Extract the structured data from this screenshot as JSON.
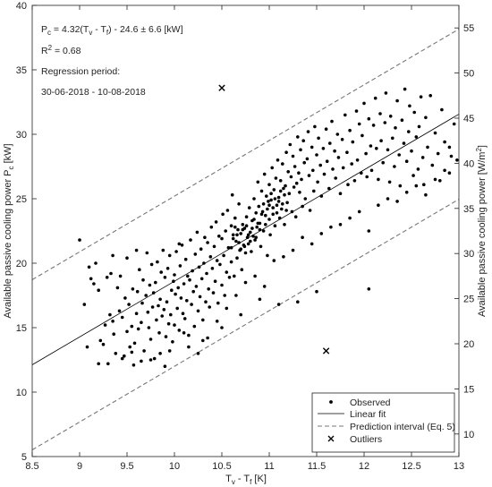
{
  "chart_data": {
    "type": "scatter",
    "x_axis": {
      "label_main": "T",
      "label_sub1": "v",
      "label_mid": " - T",
      "label_sub2": "f",
      "label_unit": " [K]",
      "range": [
        8.5,
        13
      ],
      "ticks": [
        "8.5",
        "9",
        "9.5",
        "10",
        "10.5",
        "11",
        "11.5",
        "12",
        "12.5",
        "13"
      ]
    },
    "y_left": {
      "label_main": "Available passive cooling power P",
      "label_sub": "c",
      "label_unit": " [kW]",
      "range": [
        5,
        40
      ],
      "ticks": [
        "5",
        "10",
        "15",
        "20",
        "25",
        "30",
        "35",
        "40"
      ]
    },
    "y_right": {
      "label_main": "Available passive cooling power [W/m",
      "label_sup": "2",
      "label_end": "]",
      "range": [
        7.5,
        57.5
      ],
      "ticks": [
        "10",
        "15",
        "20",
        "25",
        "30",
        "35",
        "40",
        "45",
        "50",
        "55"
      ]
    },
    "annotations": {
      "eq_p": "P",
      "eq_c": "c",
      "eq_mid": " = 4.32(T",
      "eq_v": "v",
      "eq_dash": " - T",
      "eq_f": "f",
      "eq_end": ") - 24.6 ± 6.6 [kW]",
      "r2_main": "R",
      "r2_sup": "2",
      "r2_end": " = 0.68",
      "period_label": "Regression period:",
      "period_value": "30-06-2018 - 10-08-2018"
    },
    "linear_fit": {
      "slope": 4.32,
      "intercept": -24.6
    },
    "prediction_interval": {
      "half_width": 6.6
    },
    "outliers": [
      {
        "x": 10.5,
        "y": 33.6
      },
      {
        "x": 11.6,
        "y": 13.2
      }
    ],
    "legend": {
      "placement": "bottom-right",
      "entries": [
        "Observed",
        "Linear fit",
        "Prediction interval (Eq. 5)",
        "Outliers"
      ]
    },
    "observed": [
      [
        9.0,
        21.8
      ],
      [
        9.05,
        16.8
      ],
      [
        9.08,
        13.5
      ],
      [
        9.1,
        19.7
      ],
      [
        9.12,
        18.8
      ],
      [
        9.15,
        18.4
      ],
      [
        9.17,
        20.0
      ],
      [
        9.2,
        17.9
      ],
      [
        9.22,
        14.0
      ],
      [
        9.25,
        13.7
      ],
      [
        9.27,
        15.2
      ],
      [
        9.29,
        18.9
      ],
      [
        9.3,
        12.2
      ],
      [
        9.32,
        16.0
      ],
      [
        9.33,
        19.2
      ],
      [
        9.35,
        15.5
      ],
      [
        9.36,
        14.5
      ],
      [
        9.38,
        13.0
      ],
      [
        9.4,
        18.1
      ],
      [
        9.42,
        16.3
      ],
      [
        9.43,
        19.0
      ],
      [
        9.45,
        15.8
      ],
      [
        9.47,
        12.8
      ],
      [
        9.48,
        17.3
      ],
      [
        9.5,
        20.4
      ],
      [
        9.5,
        14.7
      ],
      [
        9.52,
        16.8
      ],
      [
        9.53,
        13.5
      ],
      [
        9.55,
        15.1
      ],
      [
        9.56,
        18.0
      ],
      [
        9.57,
        12.1
      ],
      [
        9.58,
        13.8
      ],
      [
        9.6,
        16.1
      ],
      [
        9.61,
        17.8
      ],
      [
        9.62,
        14.9
      ],
      [
        9.63,
        19.5
      ],
      [
        9.65,
        15.4
      ],
      [
        9.66,
        16.9
      ],
      [
        9.67,
        18.7
      ],
      [
        9.68,
        13.2
      ],
      [
        9.7,
        17.5
      ],
      [
        9.71,
        20.8
      ],
      [
        9.72,
        16.2
      ],
      [
        9.73,
        15.0
      ],
      [
        9.74,
        18.3
      ],
      [
        9.75,
        14.1
      ],
      [
        9.76,
        19.9
      ],
      [
        9.77,
        16.6
      ],
      [
        9.78,
        17.7
      ],
      [
        9.79,
        12.6
      ],
      [
        9.8,
        18.5
      ],
      [
        9.81,
        15.6
      ],
      [
        9.82,
        20.1
      ],
      [
        9.83,
        16.7
      ],
      [
        9.84,
        14.6
      ],
      [
        9.85,
        17.2
      ],
      [
        9.86,
        19.3
      ],
      [
        9.87,
        15.9
      ],
      [
        9.88,
        21.0
      ],
      [
        9.89,
        16.4
      ],
      [
        9.9,
        18.9
      ],
      [
        9.91,
        14.3
      ],
      [
        9.92,
        17.0
      ],
      [
        9.93,
        19.6
      ],
      [
        9.94,
        15.3
      ],
      [
        9.95,
        20.6
      ],
      [
        9.96,
        16.0
      ],
      [
        9.97,
        17.9
      ],
      [
        9.98,
        13.9
      ],
      [
        9.99,
        18.6
      ],
      [
        10.0,
        19.1
      ],
      [
        10.0,
        15.2
      ],
      [
        10.01,
        17.6
      ],
      [
        10.02,
        20.9
      ],
      [
        10.03,
        16.5
      ],
      [
        10.04,
        18.1
      ],
      [
        10.05,
        14.8
      ],
      [
        10.06,
        19.8
      ],
      [
        10.07,
        17.3
      ],
      [
        10.08,
        21.4
      ],
      [
        10.09,
        16.1
      ],
      [
        10.1,
        18.4
      ],
      [
        10.11,
        15.7
      ],
      [
        10.12,
        20.3
      ],
      [
        10.13,
        17.1
      ],
      [
        10.14,
        19.0
      ],
      [
        10.15,
        14.4
      ],
      [
        10.16,
        18.7
      ],
      [
        10.17,
        21.8
      ],
      [
        10.18,
        16.8
      ],
      [
        10.19,
        19.4
      ],
      [
        10.2,
        17.8
      ],
      [
        10.21,
        15.1
      ],
      [
        10.22,
        20.7
      ],
      [
        10.23,
        18.2
      ],
      [
        10.24,
        22.4
      ],
      [
        10.25,
        16.3
      ],
      [
        10.26,
        19.7
      ],
      [
        10.27,
        17.4
      ],
      [
        10.28,
        21.1
      ],
      [
        10.29,
        18.8
      ],
      [
        10.3,
        15.6
      ],
      [
        10.31,
        20.0
      ],
      [
        10.32,
        22.0
      ],
      [
        10.33,
        17.0
      ],
      [
        10.34,
        19.2
      ],
      [
        10.35,
        21.6
      ],
      [
        10.36,
        18.0
      ],
      [
        10.37,
        16.6
      ],
      [
        10.38,
        20.5
      ],
      [
        10.39,
        22.8
      ],
      [
        10.4,
        19.6
      ],
      [
        10.41,
        17.7
      ],
      [
        10.42,
        21.3
      ],
      [
        10.43,
        18.6
      ],
      [
        10.44,
        23.2
      ],
      [
        10.45,
        20.2
      ],
      [
        10.46,
        16.9
      ],
      [
        10.47,
        22.1
      ],
      [
        10.48,
        19.9
      ],
      [
        10.5,
        18.3
      ],
      [
        10.5,
        21.9
      ],
      [
        10.51,
        23.8
      ],
      [
        10.52,
        20.6
      ],
      [
        10.53,
        17.5
      ],
      [
        10.54,
        22.5
      ],
      [
        10.55,
        19.3
      ],
      [
        10.56,
        24.1
      ],
      [
        10.57,
        21.2
      ],
      [
        10.58,
        18.9
      ],
      [
        10.6,
        22.9
      ],
      [
        10.6,
        20.1
      ],
      [
        10.61,
        25.3
      ],
      [
        10.62,
        22.2
      ],
      [
        10.63,
        19.0
      ],
      [
        10.64,
        23.5
      ],
      [
        10.65,
        21.7
      ],
      [
        10.66,
        20.4
      ],
      [
        10.67,
        22.6
      ],
      [
        10.68,
        24.6
      ],
      [
        10.69,
        21.0
      ],
      [
        10.7,
        22.3
      ],
      [
        10.71,
        19.5
      ],
      [
        10.72,
        23.0
      ],
      [
        10.73,
        21.4
      ],
      [
        10.74,
        22.7
      ],
      [
        10.75,
        20.8
      ],
      [
        10.76,
        23.6
      ],
      [
        10.77,
        22.0
      ],
      [
        10.78,
        21.5
      ],
      [
        10.79,
        24.3
      ],
      [
        10.8,
        22.4
      ],
      [
        10.81,
        20.9
      ],
      [
        10.82,
        23.3
      ],
      [
        10.83,
        22.1
      ],
      [
        10.84,
        25.0
      ],
      [
        10.85,
        21.8
      ],
      [
        10.86,
        23.9
      ],
      [
        10.87,
        22.8
      ],
      [
        10.88,
        26.3
      ],
      [
        10.89,
        24.4
      ],
      [
        10.9,
        23.1
      ],
      [
        10.91,
        21.3
      ],
      [
        10.92,
        25.6
      ],
      [
        10.93,
        24.0
      ],
      [
        10.94,
        22.5
      ],
      [
        10.95,
        26.9
      ],
      [
        10.96,
        23.7
      ],
      [
        10.97,
        25.2
      ],
      [
        10.98,
        20.6
      ],
      [
        10.99,
        24.8
      ],
      [
        11.0,
        23.4
      ],
      [
        11.0,
        26.1
      ],
      [
        11.01,
        22.2
      ],
      [
        11.02,
        24.9
      ],
      [
        11.03,
        27.4
      ],
      [
        11.04,
        23.8
      ],
      [
        11.05,
        25.7
      ],
      [
        11.06,
        22.9
      ],
      [
        11.07,
        26.6
      ],
      [
        11.08,
        24.5
      ],
      [
        11.09,
        28.0
      ],
      [
        11.1,
        25.1
      ],
      [
        11.11,
        23.5
      ],
      [
        11.12,
        26.4
      ],
      [
        11.13,
        24.2
      ],
      [
        11.14,
        27.7
      ],
      [
        11.15,
        25.8
      ],
      [
        11.16,
        23.0
      ],
      [
        11.17,
        26.0
      ],
      [
        11.18,
        28.6
      ],
      [
        11.19,
        24.7
      ],
      [
        11.2,
        27.1
      ],
      [
        11.21,
        25.4
      ],
      [
        11.22,
        29.2
      ],
      [
        11.23,
        26.7
      ],
      [
        11.24,
        24.0
      ],
      [
        11.25,
        28.3
      ],
      [
        11.26,
        25.9
      ],
      [
        11.27,
        27.5
      ],
      [
        11.28,
        23.6
      ],
      [
        11.29,
        26.2
      ],
      [
        11.3,
        29.8
      ],
      [
        11.31,
        27.0
      ],
      [
        11.32,
        25.5
      ],
      [
        11.33,
        28.8
      ],
      [
        11.34,
        26.5
      ],
      [
        11.35,
        24.4
      ],
      [
        11.36,
        29.5
      ],
      [
        11.37,
        27.8
      ],
      [
        11.38,
        25.0
      ],
      [
        11.4,
        28.1
      ],
      [
        11.41,
        30.2
      ],
      [
        11.42,
        26.8
      ],
      [
        11.43,
        24.1
      ],
      [
        11.45,
        29.0
      ],
      [
        11.46,
        27.2
      ],
      [
        11.47,
        25.6
      ],
      [
        11.48,
        30.6
      ],
      [
        11.5,
        28.4
      ],
      [
        11.51,
        26.3
      ],
      [
        11.52,
        29.7
      ],
      [
        11.54,
        27.6
      ],
      [
        11.55,
        25.2
      ],
      [
        11.57,
        28.9
      ],
      [
        11.58,
        26.9
      ],
      [
        11.6,
        30.4
      ],
      [
        11.61,
        27.9
      ],
      [
        11.63,
        25.8
      ],
      [
        11.64,
        29.3
      ],
      [
        11.66,
        31.0
      ],
      [
        11.67,
        27.3
      ],
      [
        11.69,
        28.7
      ],
      [
        11.7,
        26.6
      ],
      [
        11.72,
        30.0
      ],
      [
        11.73,
        28.2
      ],
      [
        11.75,
        25.4
      ],
      [
        11.77,
        29.6
      ],
      [
        11.78,
        27.4
      ],
      [
        11.8,
        31.5
      ],
      [
        11.82,
        28.6
      ],
      [
        11.83,
        26.1
      ],
      [
        11.85,
        30.3
      ],
      [
        11.87,
        27.7
      ],
      [
        11.88,
        29.4
      ],
      [
        11.9,
        26.4
      ],
      [
        11.92,
        31.8
      ],
      [
        11.93,
        28.0
      ],
      [
        11.95,
        30.8
      ],
      [
        11.97,
        27.0
      ],
      [
        11.98,
        29.9
      ],
      [
        12.0,
        32.4
      ],
      [
        12.02,
        28.5
      ],
      [
        12.03,
        26.7
      ],
      [
        12.05,
        31.2
      ],
      [
        12.07,
        29.1
      ],
      [
        12.08,
        27.2
      ],
      [
        12.1,
        30.7
      ],
      [
        12.12,
        32.8
      ],
      [
        12.13,
        28.9
      ],
      [
        12.15,
        26.5
      ],
      [
        12.17,
        31.6
      ],
      [
        12.18,
        29.5
      ],
      [
        12.2,
        27.8
      ],
      [
        12.22,
        30.9
      ],
      [
        12.23,
        33.2
      ],
      [
        12.25,
        28.8
      ],
      [
        12.27,
        26.3
      ],
      [
        12.28,
        31.4
      ],
      [
        12.3,
        29.7
      ],
      [
        12.32,
        27.5
      ],
      [
        12.33,
        30.5
      ],
      [
        12.35,
        32.6
      ],
      [
        12.37,
        28.4
      ],
      [
        12.38,
        26.0
      ],
      [
        12.4,
        31.1
      ],
      [
        12.42,
        29.3
      ],
      [
        12.43,
        33.5
      ],
      [
        12.45,
        27.9
      ],
      [
        12.47,
        30.2
      ],
      [
        12.48,
        32.2
      ],
      [
        12.5,
        28.7
      ],
      [
        12.52,
        26.8
      ],
      [
        12.53,
        31.7
      ],
      [
        12.55,
        29.8
      ],
      [
        12.57,
        27.3
      ],
      [
        12.58,
        30.6
      ],
      [
        12.6,
        32.9
      ],
      [
        12.62,
        28.2
      ],
      [
        12.63,
        26.1
      ],
      [
        12.65,
        31.3
      ],
      [
        12.67,
        29.0
      ],
      [
        12.7,
        33.0
      ],
      [
        12.72,
        27.6
      ],
      [
        12.75,
        30.1
      ],
      [
        12.78,
        28.5
      ],
      [
        12.8,
        26.4
      ],
      [
        12.82,
        31.9
      ],
      [
        12.85,
        29.4
      ],
      [
        12.9,
        27.0
      ],
      [
        12.95,
        30.8
      ],
      [
        12.98,
        28.0
      ],
      [
        9.2,
        12.2
      ],
      [
        9.35,
        20.6
      ],
      [
        9.6,
        21.0
      ],
      [
        9.75,
        12.5
      ],
      [
        9.9,
        12.0
      ],
      [
        10.05,
        21.5
      ],
      [
        10.15,
        13.5
      ],
      [
        10.25,
        13.0
      ],
      [
        10.35,
        14.2
      ],
      [
        10.45,
        15.5
      ],
      [
        10.55,
        16.5
      ],
      [
        10.65,
        17.5
      ],
      [
        10.75,
        18.5
      ],
      [
        10.85,
        19.0
      ],
      [
        10.95,
        18.2
      ],
      [
        11.05,
        20.2
      ],
      [
        11.15,
        20.5
      ],
      [
        11.25,
        21.0
      ],
      [
        11.35,
        22.0
      ],
      [
        11.45,
        21.5
      ],
      [
        11.55,
        22.3
      ],
      [
        11.65,
        22.8
      ],
      [
        11.75,
        23.0
      ],
      [
        11.85,
        23.5
      ],
      [
        11.95,
        24.0
      ],
      [
        12.05,
        22.5
      ],
      [
        12.15,
        24.5
      ],
      [
        12.25,
        25.0
      ],
      [
        12.35,
        24.8
      ],
      [
        12.45,
        25.5
      ],
      [
        12.55,
        26.0
      ],
      [
        12.65,
        25.3
      ],
      [
        12.75,
        26.5
      ],
      [
        12.85,
        27.2
      ],
      [
        12.9,
        29.0
      ],
      [
        12.92,
        28.3
      ],
      [
        12.05,
        18.0
      ],
      [
        11.5,
        17.8
      ],
      [
        11.3,
        17.0
      ],
      [
        11.1,
        16.8
      ],
      [
        10.9,
        17.2
      ],
      [
        10.7,
        16.0
      ],
      [
        10.5,
        15.0
      ],
      [
        10.3,
        14.0
      ],
      [
        10.1,
        14.6
      ],
      [
        9.95,
        13.2
      ],
      [
        9.85,
        13.0
      ],
      [
        9.65,
        12.4
      ],
      [
        9.55,
        13.1
      ],
      [
        9.45,
        12.6
      ],
      [
        10.6,
        21.2
      ],
      [
        10.62,
        21.9
      ],
      [
        10.64,
        22.8
      ],
      [
        10.66,
        22.2
      ],
      [
        10.68,
        21.6
      ],
      [
        10.7,
        21.1
      ],
      [
        10.72,
        22.6
      ],
      [
        10.74,
        21.3
      ],
      [
        10.76,
        22.9
      ],
      [
        10.78,
        22.2
      ],
      [
        10.8,
        21.7
      ],
      [
        10.82,
        22.7
      ],
      [
        10.84,
        23.4
      ],
      [
        10.86,
        22.0
      ],
      [
        10.88,
        23.1
      ],
      [
        10.9,
        22.6
      ],
      [
        10.92,
        23.8
      ],
      [
        10.94,
        24.6
      ],
      [
        10.96,
        23.0
      ],
      [
        10.98,
        24.2
      ],
      [
        11.0,
        24.5
      ],
      [
        11.02,
        25.4
      ],
      [
        11.04,
        24.3
      ],
      [
        11.06,
        25.0
      ],
      [
        11.08,
        23.9
      ],
      [
        11.1,
        24.8
      ],
      [
        11.12,
        25.6
      ],
      [
        11.14,
        24.6
      ],
      [
        11.16,
        25.3
      ],
      [
        11.18,
        24.1
      ]
    ]
  }
}
